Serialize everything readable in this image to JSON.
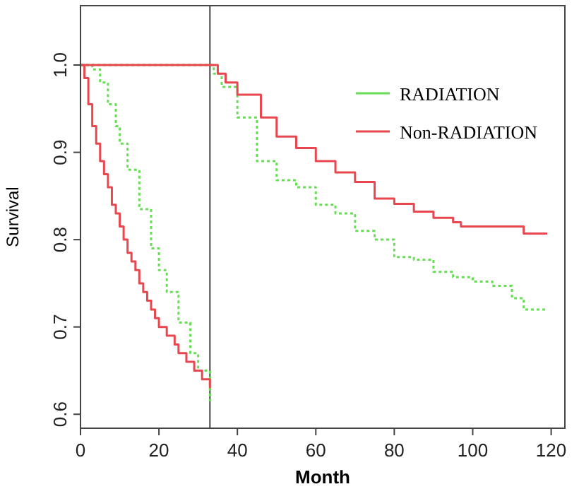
{
  "chart_data": {
    "type": "step",
    "xlabel": "Month",
    "ylabel": "Survival",
    "xlim": [
      0,
      123.5
    ],
    "ylim": [
      0.584,
      1.068
    ],
    "xticks": [
      0,
      20,
      40,
      60,
      80,
      100,
      120
    ],
    "yticks": [
      0.6,
      0.7,
      0.8,
      0.9,
      {
        "value": 1,
        "label": "1.0"
      }
    ],
    "grid": false,
    "legend": "top right",
    "ref_lines": [
      {
        "axis": "x",
        "value": 33,
        "color": "#444444"
      }
    ],
    "series": [
      {
        "name": "RADIATION",
        "color": "#66dd55",
        "line_style": "dotted",
        "x": [
          0,
          3,
          5,
          7,
          9,
          10,
          12,
          15,
          18,
          20,
          22,
          25,
          28,
          30,
          33
        ],
        "values": [
          1,
          0.995,
          0.98,
          0.955,
          0.93,
          0.91,
          0.88,
          0.835,
          0.79,
          0.765,
          0.74,
          0.705,
          0.67,
          0.65,
          0.615
        ]
      },
      {
        "name": "Non-RADIATION",
        "color": "#e8474f",
        "line_style": "solid",
        "x": [
          0,
          1,
          2,
          3,
          4,
          5,
          6,
          7,
          8,
          9,
          10,
          11,
          12,
          13,
          14,
          15,
          16,
          17,
          18,
          19,
          20,
          22,
          24,
          25,
          27,
          29,
          31,
          33
        ],
        "values": [
          1,
          0.985,
          0.955,
          0.93,
          0.91,
          0.89,
          0.875,
          0.86,
          0.84,
          0.83,
          0.815,
          0.8,
          0.785,
          0.775,
          0.765,
          0.75,
          0.74,
          0.73,
          0.72,
          0.71,
          0.7,
          0.69,
          0.68,
          0.67,
          0.66,
          0.65,
          0.64,
          0.63
        ]
      },
      {
        "color": "#66dd55",
        "line_style": "dotted",
        "x": [
          0,
          34,
          36,
          40,
          45,
          50,
          55,
          60,
          65,
          70,
          75,
          80,
          85,
          90,
          95,
          100,
          105,
          110,
          113,
          119
        ],
        "values": [
          1,
          0.99,
          0.975,
          0.94,
          0.89,
          0.868,
          0.86,
          0.84,
          0.83,
          0.81,
          0.8,
          0.78,
          0.777,
          0.763,
          0.757,
          0.752,
          0.747,
          0.733,
          0.72,
          0.72
        ]
      },
      {
        "color": "#e8474f",
        "line_style": "solid",
        "x": [
          0,
          33,
          35,
          37,
          40,
          46,
          50,
          55,
          60,
          65,
          70,
          75,
          80,
          85,
          90,
          95,
          97,
          113,
          119
        ],
        "values": [
          1,
          1,
          0.99,
          0.98,
          0.966,
          0.94,
          0.918,
          0.905,
          0.89,
          0.877,
          0.866,
          0.847,
          0.841,
          0.832,
          0.825,
          0.82,
          0.815,
          0.807,
          0.807
        ]
      }
    ]
  }
}
